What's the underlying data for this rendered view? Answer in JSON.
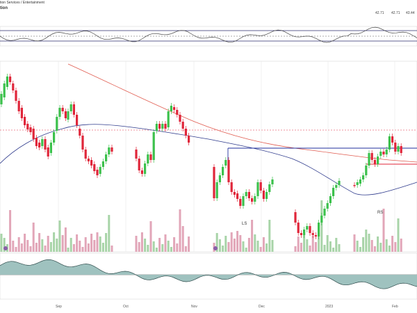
{
  "header": {
    "subtitle": "tion Services / Entertainment",
    "title": "tion",
    "quote_values": [
      "42.71",
      "42.71",
      "43.44"
    ]
  },
  "chart_data": [
    {
      "panel": "oscillator-upper",
      "type": "line",
      "grid": true
    },
    {
      "panel": "price",
      "type": "candlestick",
      "x_axis": {
        "tick_labels": [
          "Sep",
          "Oct",
          "Nov",
          "Dec",
          "2023",
          "Feb"
        ]
      },
      "series": [],
      "annotations": [
        "LS",
        "RS"
      ],
      "volume": true,
      "grid": true
    },
    {
      "panel": "oscillator-lower",
      "type": "area",
      "grid": true
    }
  ],
  "colors": {
    "up": "#3cc14c",
    "down": "#e0263a",
    "ma_short": "#2e3a8c",
    "ma_long": "#e05a4e",
    "resistance": "#1f2f9e",
    "vol_up": "#a8d4a8",
    "vol_down": "#e2a6b8",
    "osc_fill": "#9fc2bf",
    "osc_line": "#2d4a4a",
    "grid": "#e5e5e5"
  }
}
